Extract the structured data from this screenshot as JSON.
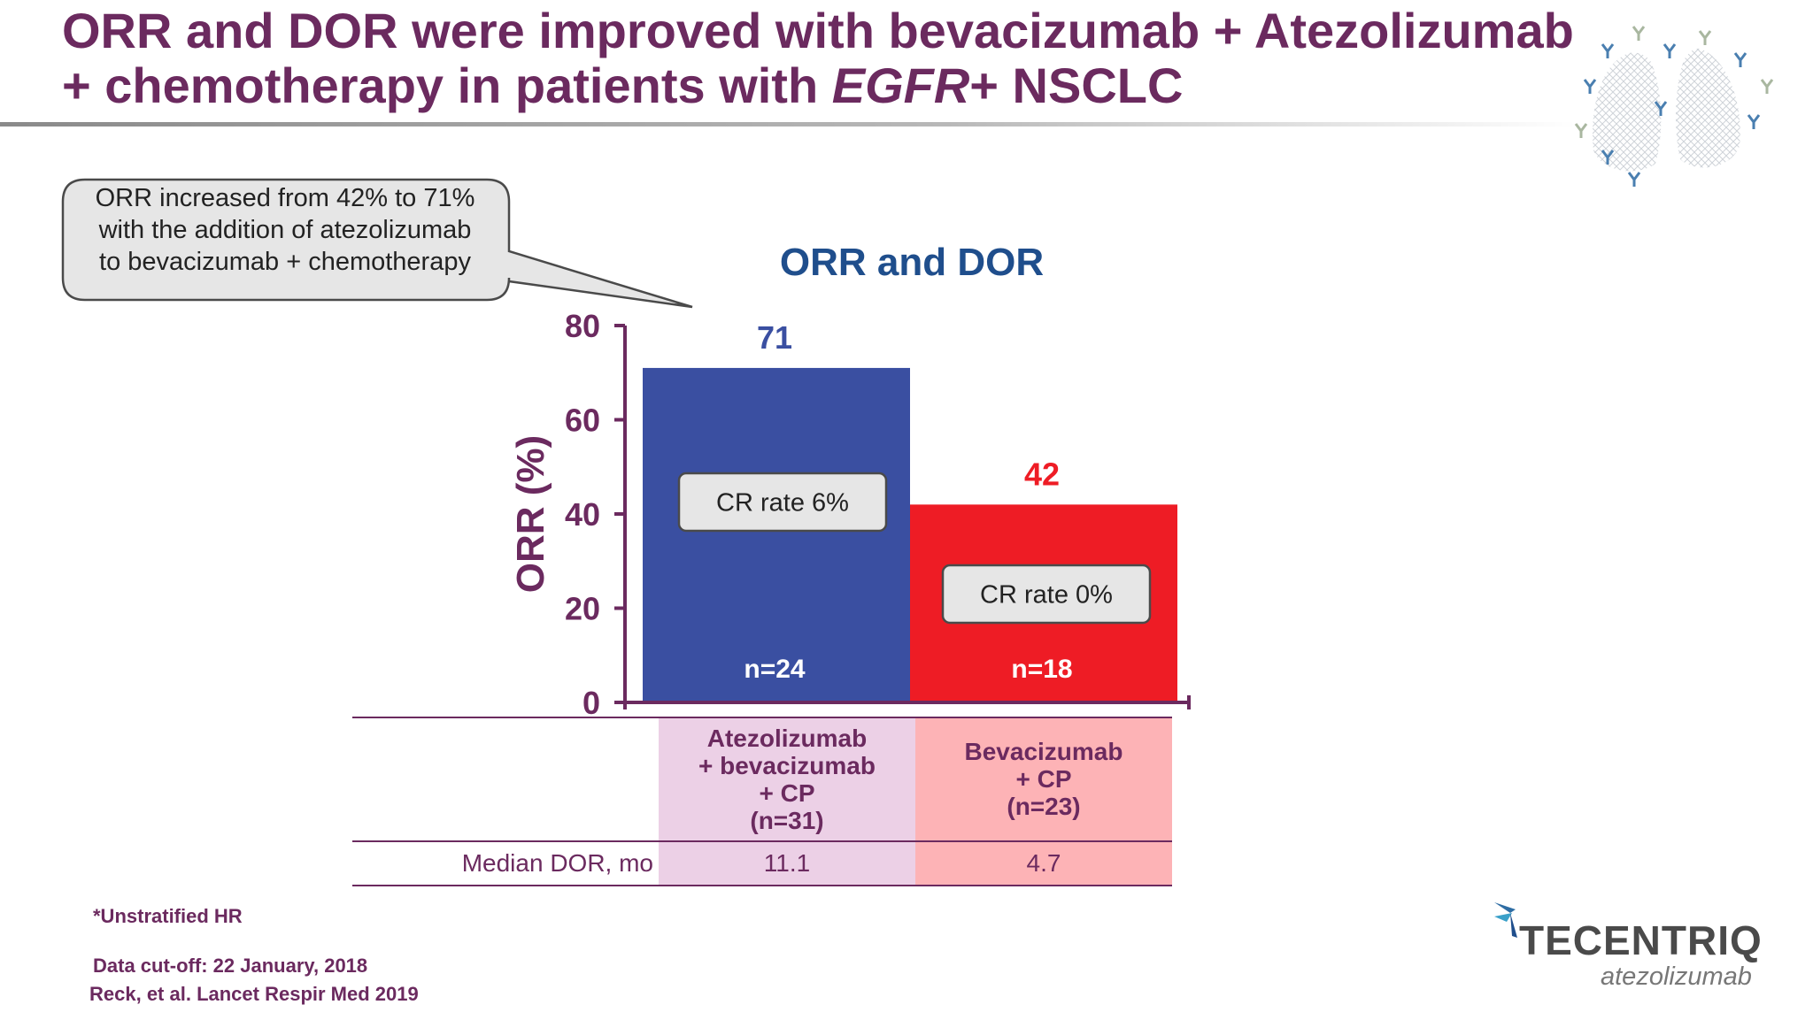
{
  "title": {
    "line1": "ORR and DOR were improved with bevacizumab + Atezolizumab",
    "line2_prefix": "+ chemotherapy in patients with ",
    "line2_italic": "EGFR",
    "line2_suffix": "+ NSCLC"
  },
  "callout": {
    "line1": "ORR increased from 42% to 71%",
    "line2": "with the addition of atezolizumab",
    "line3": "to bevacizumab + chemotherapy"
  },
  "chart_data": {
    "type": "bar",
    "title": "ORR and DOR",
    "ylabel": "ORR (%)",
    "ylim": [
      0,
      80
    ],
    "yticks": [
      "0",
      "20",
      "40",
      "60",
      "80"
    ],
    "categories": [
      "Atezolizumab + bevacizumab + CP (n=31)",
      "Bevacizumab + CP (n=23)"
    ],
    "values": [
      71,
      42
    ],
    "value_labels": [
      "71",
      "42"
    ],
    "colors": [
      "#3a4fa1",
      "#ee1c25"
    ],
    "value_label_colors": [
      "#3a4fa1",
      "#ee1c25"
    ],
    "cr_labels": [
      "CR rate 6%",
      "CR rate 0%"
    ],
    "n_labels": [
      "n=24",
      "n=18"
    ]
  },
  "table": {
    "headers": [
      [
        "Atezolizumab",
        "+ bevacizumab",
        "+ CP",
        "(n=31)"
      ],
      [
        "Bevacizumab",
        "+ CP",
        "(n=23)"
      ]
    ],
    "row_label": "Median DOR, mo",
    "values": [
      "11.1",
      "4.7"
    ],
    "colors": [
      "#ecd0e6",
      "#fdb3b6"
    ]
  },
  "footnotes": {
    "note": "*Unstratified HR",
    "cutoff": "Data cut-off: 22 January, 2018",
    "reference": "Reck, et al. Lancet Respir Med 2019"
  },
  "logo": {
    "name": "TECENTRIQ",
    "sub": "atezolizumab"
  },
  "colors": {
    "title": "#6b2a5f",
    "chart_title": "#1f4e8c",
    "axis": "#6b2a5f"
  }
}
